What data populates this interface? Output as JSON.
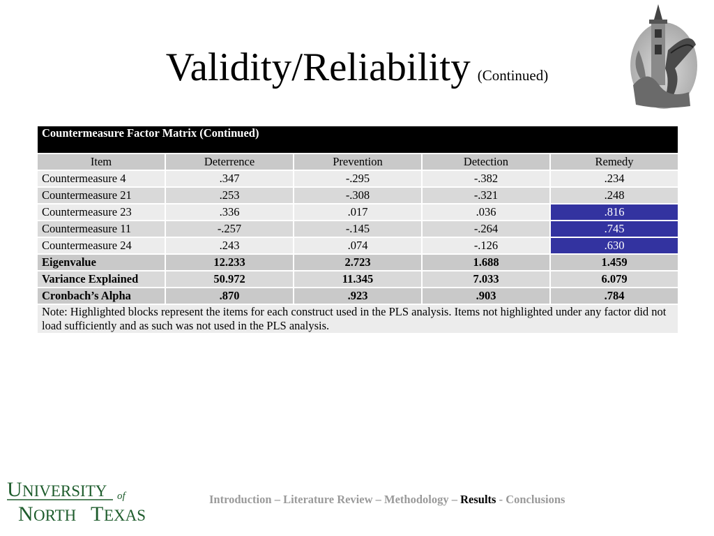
{
  "title": {
    "main": "Validity/Reliability",
    "sub": "(Continued)"
  },
  "table": {
    "caption": "Countermeasure Factor Matrix (Continued)",
    "columns": [
      "Item",
      "Deterrence",
      "Prevention",
      "Detection",
      "Remedy"
    ],
    "rows": [
      {
        "item": "Countermeasure 4",
        "values": [
          ".347",
          "-.295",
          "-.382",
          ".234"
        ]
      },
      {
        "item": "Countermeasure 21",
        "values": [
          ".253",
          "-.308",
          "-.321",
          ".248"
        ]
      },
      {
        "item": "Countermeasure 23",
        "values": [
          ".336",
          ".017",
          ".036",
          ".816"
        ]
      },
      {
        "item": "Countermeasure 11",
        "values": [
          "-.257",
          "-.145",
          "-.264",
          ".745"
        ]
      },
      {
        "item": "Countermeasure 24",
        "values": [
          ".243",
          ".074",
          "-.126",
          ".630"
        ]
      }
    ],
    "stats": [
      {
        "label": "Eigenvalue",
        "values": [
          "12.233",
          "2.723",
          "1.688",
          "1.459"
        ]
      },
      {
        "label": "Variance Explained",
        "values": [
          "50.972",
          "11.345",
          "7.033",
          "6.079"
        ]
      },
      {
        "label": "Cronbach’s Alpha",
        "values": [
          ".870",
          ".923",
          ".903",
          ".784"
        ]
      }
    ],
    "note": "Note: Highlighted blocks represent the items for each construct used in the PLS analysis.  Items not highlighted under any factor did not load sufficiently and as such was not used in the PLS analysis.",
    "highlight_color": "#3333a0"
  },
  "logo": {
    "line1_big": "U",
    "line1_rest": "NIVERSITY",
    "of": "of",
    "line2_big1": "N",
    "line2_rest1": "ORTH ",
    "line2_big2": "T",
    "line2_rest2": "EXAS",
    "color": "#1e5c2c"
  },
  "footer": {
    "item1": "Introduction",
    "sep1": " – ",
    "item2": "Literature Review",
    "sep2": " – ",
    "item3": "Methodology",
    "sep3": " – ",
    "item4": "Results",
    "sep4": " - ",
    "item5": "Conclusions"
  }
}
